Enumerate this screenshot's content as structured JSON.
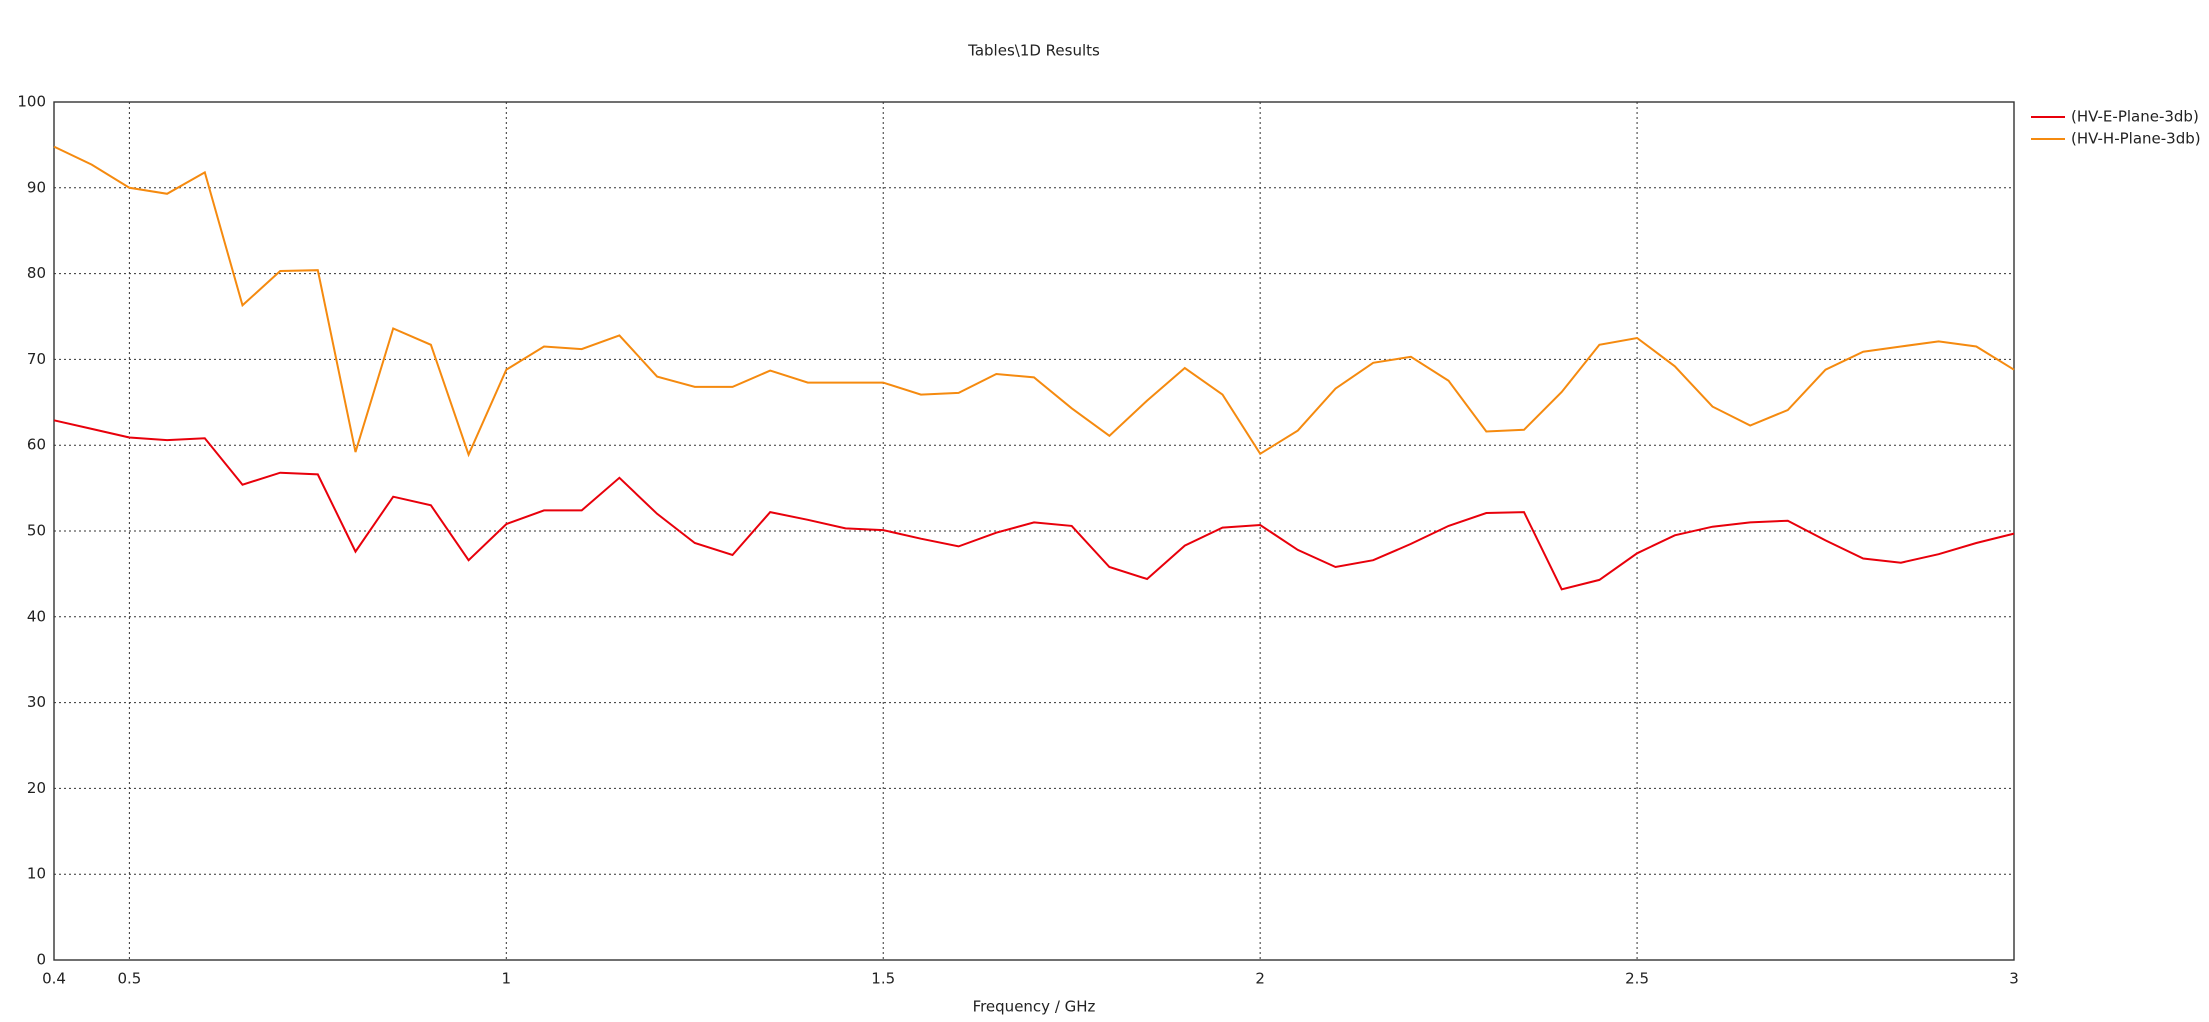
{
  "chart_data": {
    "type": "line",
    "title": "Tables\\1D Results",
    "xlabel": "Frequency / GHz",
    "x": [
      0.4,
      0.45,
      0.5,
      0.55,
      0.6,
      0.65,
      0.7,
      0.75,
      0.8,
      0.85,
      0.9,
      0.95,
      1.0,
      1.05,
      1.1,
      1.15,
      1.2,
      1.25,
      1.3,
      1.35,
      1.4,
      1.45,
      1.5,
      1.55,
      1.6,
      1.65,
      1.7,
      1.75,
      1.8,
      1.85,
      1.9,
      1.95,
      2.0,
      2.05,
      2.1,
      2.15,
      2.2,
      2.25,
      2.3,
      2.35,
      2.4,
      2.45,
      2.5,
      2.55,
      2.6,
      2.65,
      2.7,
      2.75,
      2.8,
      2.85,
      2.9,
      2.95,
      3.0
    ],
    "series": [
      {
        "name": "(HV-E-Plane-3db)",
        "color": "#e8000b",
        "values": [
          62.9,
          61.9,
          60.9,
          60.6,
          60.8,
          55.4,
          56.8,
          56.6,
          47.6,
          54,
          53,
          46.6,
          50.8,
          52.4,
          52.4,
          56.2,
          52,
          48.6,
          47.2,
          52.2,
          51.3,
          50.3,
          50.1,
          49.1,
          48.2,
          49.8,
          51,
          50.6,
          45.8,
          44.4,
          48.3,
          50.4,
          50.7,
          47.8,
          45.8,
          46.6,
          48.5,
          50.6,
          52.1,
          52.2,
          43.2,
          44.3,
          47.4,
          49.5,
          50.5,
          51,
          51.2,
          48.9,
          46.8,
          46.3,
          47.3,
          48.6,
          49.7
        ]
      },
      {
        "name": "(HV-H-Plane-3db)",
        "color": "#f58a0f",
        "values": [
          94.8,
          92.7,
          90,
          89.3,
          91.8,
          76.3,
          80.3,
          80.4,
          59.2,
          73.6,
          71.7,
          58.9,
          68.8,
          71.5,
          71.2,
          72.8,
          68,
          66.8,
          66.8,
          68.7,
          67.3,
          67.3,
          67.3,
          65.9,
          66.1,
          68.3,
          67.9,
          64.3,
          61.1,
          65.2,
          69,
          65.9,
          59,
          61.7,
          66.6,
          69.6,
          70.3,
          67.5,
          61.6,
          61.8,
          66.2,
          71.7,
          72.5,
          69.2,
          64.5,
          62.3,
          64.1,
          68.8,
          70.9,
          71.5,
          72.1,
          71.5,
          68.8
        ]
      }
    ],
    "xlim": [
      0.4,
      3
    ],
    "xticks": [
      0.4,
      0.5,
      1,
      1.5,
      2,
      2.5,
      3
    ],
    "ylim": [
      0,
      100
    ],
    "yticks": [
      0,
      10,
      20,
      30,
      40,
      50,
      60,
      70,
      80,
      90,
      100
    ],
    "grid": true,
    "legend": "upper right"
  }
}
